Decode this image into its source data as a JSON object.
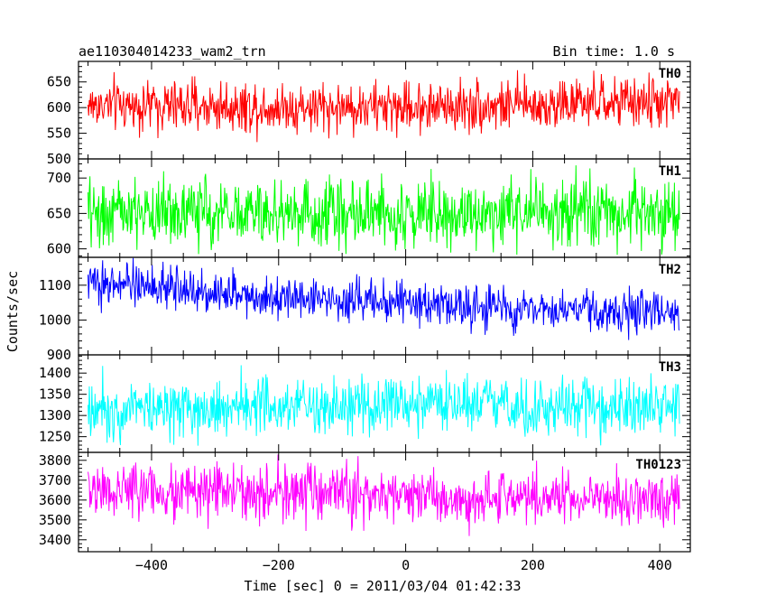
{
  "header": {
    "title": "ae110304014233_wam2_trn",
    "bin_time": "Bin time: 1.0 s"
  },
  "xlabel": "Time [sec] 0 = 2011/03/04 01:42:33",
  "ylabel": "Counts/sec",
  "chart_data": [
    {
      "type": "line",
      "name": "TH0",
      "color": "#ff0000",
      "xlim": [
        -515,
        448
      ],
      "ylim": [
        500,
        690
      ],
      "yticks": [
        500,
        550,
        600,
        650
      ],
      "x_start": -500,
      "x_end": 431,
      "x_step": 1,
      "mean": 604,
      "noise": 25,
      "trend": [
        [
          -500,
          605
        ],
        [
          -100,
          600
        ],
        [
          200,
          605
        ],
        [
          431,
          612
        ]
      ]
    },
    {
      "type": "line",
      "name": "TH1",
      "color": "#00ff00",
      "xlim": [
        -515,
        448
      ],
      "ylim": [
        588,
        727
      ],
      "yticks": [
        600,
        650,
        700
      ],
      "x_start": -500,
      "x_end": 431,
      "x_step": 1,
      "mean": 651,
      "noise": 24,
      "trend": [
        [
          -500,
          651
        ],
        [
          431,
          651
        ]
      ]
    },
    {
      "type": "line",
      "name": "TH2",
      "color": "#0000ff",
      "xlim": [
        -515,
        448
      ],
      "ylim": [
        900,
        1180
      ],
      "yticks": [
        900,
        1000,
        1100
      ],
      "x_start": -500,
      "x_end": 431,
      "x_step": 1,
      "mean": 1060,
      "noise": 30,
      "trend": [
        [
          -500,
          1110
        ],
        [
          -300,
          1080
        ],
        [
          0,
          1050
        ],
        [
          200,
          1030
        ],
        [
          431,
          1020
        ]
      ]
    },
    {
      "type": "line",
      "name": "TH3",
      "color": "#00ffff",
      "xlim": [
        -515,
        448
      ],
      "ylim": [
        1213,
        1443
      ],
      "yticks": [
        1250,
        1300,
        1350,
        1400
      ],
      "x_start": -500,
      "x_end": 431,
      "x_step": 1,
      "mean": 1320,
      "noise": 35,
      "trend": [
        [
          -500,
          1320
        ],
        [
          431,
          1320
        ]
      ]
    },
    {
      "type": "line",
      "name": "TH0123",
      "color": "#ff00ff",
      "xlim": [
        -515,
        448
      ],
      "ylim": [
        3340,
        3840
      ],
      "yticks": [
        3400,
        3500,
        3600,
        3700,
        3800
      ],
      "xticks": [
        -400,
        -200,
        0,
        200,
        400
      ],
      "x_start": -500,
      "x_end": 431,
      "x_step": 1,
      "mean": 3630,
      "noise": 70,
      "trend": [
        [
          -500,
          3650
        ],
        [
          0,
          3620
        ],
        [
          431,
          3600
        ]
      ]
    }
  ]
}
